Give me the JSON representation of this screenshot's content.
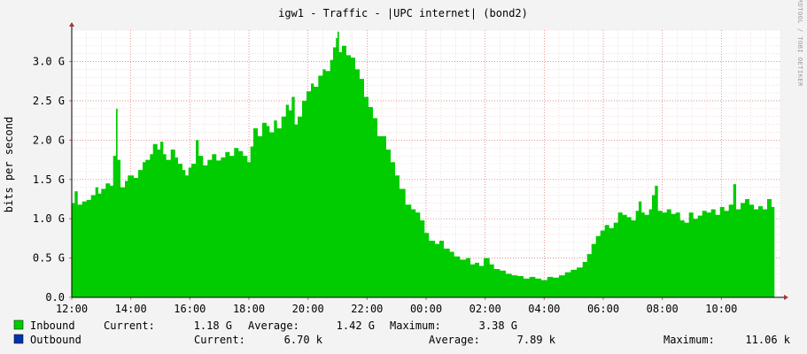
{
  "window": {
    "title": "igw1 - Traffic - |UPC internet| (bond2)",
    "watermark": "RRDTOOL / TOBI OETIKER"
  },
  "legend": {
    "inbound": {
      "name": "Inbound",
      "current_label": "Current:",
      "current": "1.18 G",
      "average_label": "Average:",
      "average": "1.42 G",
      "maximum_label": "Maximum:",
      "maximum": "3.38 G",
      "color": "#00cc00"
    },
    "outbound": {
      "name": "Outbound",
      "current_label": "Current:",
      "current": "6.70 k",
      "average_label": "Average:",
      "average": "7.89 k",
      "maximum_label": "Maximum:",
      "maximum": "11.06 k",
      "color": "#0033aa"
    }
  },
  "chart_data": {
    "type": "area",
    "title": "igw1 - Traffic - |UPC internet| (bond2)",
    "ylabel": "bits per second",
    "xlabel": "",
    "x_ticks": [
      "12:00",
      "14:00",
      "16:00",
      "18:00",
      "20:00",
      "22:00",
      "00:00",
      "02:00",
      "04:00",
      "06:00",
      "08:00",
      "10:00"
    ],
    "y_ticks": [
      "0.0",
      "0.5 G",
      "1.0 G",
      "1.5 G",
      "2.0 G",
      "2.5 G",
      "3.0 G"
    ],
    "y_tick_values": [
      0,
      0.5,
      1.0,
      1.5,
      2.0,
      2.5,
      3.0
    ],
    "ylim": [
      0,
      3.4
    ],
    "x_range_hours": [
      12,
      36
    ],
    "grid": true,
    "series": [
      {
        "name": "Inbound",
        "color": "#00cc00",
        "unit": "G",
        "points": [
          [
            12.0,
            1.2
          ],
          [
            12.1,
            1.35
          ],
          [
            12.2,
            1.18
          ],
          [
            12.35,
            1.22
          ],
          [
            12.5,
            1.24
          ],
          [
            12.65,
            1.3
          ],
          [
            12.8,
            1.4
          ],
          [
            12.9,
            1.32
          ],
          [
            13.0,
            1.38
          ],
          [
            13.15,
            1.45
          ],
          [
            13.3,
            1.42
          ],
          [
            13.4,
            1.8
          ],
          [
            13.5,
            2.4
          ],
          [
            13.55,
            1.75
          ],
          [
            13.65,
            1.4
          ],
          [
            13.8,
            1.48
          ],
          [
            13.9,
            1.55
          ],
          [
            14.1,
            1.52
          ],
          [
            14.25,
            1.62
          ],
          [
            14.4,
            1.72
          ],
          [
            14.5,
            1.75
          ],
          [
            14.65,
            1.82
          ],
          [
            14.75,
            1.95
          ],
          [
            14.9,
            1.88
          ],
          [
            15.0,
            1.98
          ],
          [
            15.1,
            1.82
          ],
          [
            15.2,
            1.75
          ],
          [
            15.35,
            1.88
          ],
          [
            15.5,
            1.78
          ],
          [
            15.6,
            1.7
          ],
          [
            15.75,
            1.62
          ],
          [
            15.85,
            1.55
          ],
          [
            15.95,
            1.65
          ],
          [
            16.05,
            1.7
          ],
          [
            16.2,
            2.0
          ],
          [
            16.3,
            1.8
          ],
          [
            16.45,
            1.68
          ],
          [
            16.6,
            1.75
          ],
          [
            16.75,
            1.82
          ],
          [
            16.9,
            1.74
          ],
          [
            17.05,
            1.78
          ],
          [
            17.2,
            1.85
          ],
          [
            17.35,
            1.8
          ],
          [
            17.5,
            1.9
          ],
          [
            17.65,
            1.86
          ],
          [
            17.8,
            1.8
          ],
          [
            17.95,
            1.72
          ],
          [
            18.05,
            1.92
          ],
          [
            18.15,
            2.15
          ],
          [
            18.3,
            2.05
          ],
          [
            18.45,
            2.22
          ],
          [
            18.6,
            2.18
          ],
          [
            18.7,
            2.1
          ],
          [
            18.85,
            2.25
          ],
          [
            18.95,
            2.15
          ],
          [
            19.1,
            2.3
          ],
          [
            19.25,
            2.45
          ],
          [
            19.35,
            2.38
          ],
          [
            19.45,
            2.55
          ],
          [
            19.55,
            2.2
          ],
          [
            19.65,
            2.3
          ],
          [
            19.8,
            2.5
          ],
          [
            19.95,
            2.62
          ],
          [
            20.1,
            2.72
          ],
          [
            20.2,
            2.68
          ],
          [
            20.35,
            2.82
          ],
          [
            20.5,
            2.9
          ],
          [
            20.6,
            2.88
          ],
          [
            20.75,
            3.02
          ],
          [
            20.85,
            3.18
          ],
          [
            20.95,
            3.3
          ],
          [
            21.0,
            3.38
          ],
          [
            21.05,
            3.12
          ],
          [
            21.15,
            3.2
          ],
          [
            21.3,
            3.08
          ],
          [
            21.45,
            3.05
          ],
          [
            21.6,
            2.9
          ],
          [
            21.75,
            2.78
          ],
          [
            21.9,
            2.55
          ],
          [
            22.05,
            2.42
          ],
          [
            22.2,
            2.28
          ],
          [
            22.35,
            2.05
          ],
          [
            22.5,
            2.05
          ],
          [
            22.65,
            1.88
          ],
          [
            22.8,
            1.72
          ],
          [
            22.95,
            1.55
          ],
          [
            23.1,
            1.38
          ],
          [
            23.3,
            1.18
          ],
          [
            23.5,
            1.12
          ],
          [
            23.65,
            1.08
          ],
          [
            23.8,
            0.98
          ],
          [
            23.95,
            0.82
          ],
          [
            24.1,
            0.72
          ],
          [
            24.3,
            0.68
          ],
          [
            24.45,
            0.72
          ],
          [
            24.6,
            0.62
          ],
          [
            24.8,
            0.58
          ],
          [
            24.95,
            0.52
          ],
          [
            25.15,
            0.48
          ],
          [
            25.35,
            0.5
          ],
          [
            25.5,
            0.42
          ],
          [
            25.65,
            0.44
          ],
          [
            25.8,
            0.4
          ],
          [
            25.95,
            0.5
          ],
          [
            26.15,
            0.42
          ],
          [
            26.3,
            0.36
          ],
          [
            26.5,
            0.34
          ],
          [
            26.7,
            0.3
          ],
          [
            26.9,
            0.28
          ],
          [
            27.1,
            0.27
          ],
          [
            27.3,
            0.24
          ],
          [
            27.5,
            0.26
          ],
          [
            27.7,
            0.24
          ],
          [
            27.9,
            0.22
          ],
          [
            28.1,
            0.26
          ],
          [
            28.3,
            0.25
          ],
          [
            28.5,
            0.28
          ],
          [
            28.7,
            0.32
          ],
          [
            28.9,
            0.35
          ],
          [
            29.1,
            0.38
          ],
          [
            29.3,
            0.45
          ],
          [
            29.45,
            0.55
          ],
          [
            29.6,
            0.68
          ],
          [
            29.75,
            0.78
          ],
          [
            29.9,
            0.85
          ],
          [
            30.05,
            0.92
          ],
          [
            30.2,
            0.88
          ],
          [
            30.35,
            0.95
          ],
          [
            30.5,
            1.08
          ],
          [
            30.65,
            1.05
          ],
          [
            30.8,
            1.02
          ],
          [
            30.95,
            0.98
          ],
          [
            31.1,
            1.1
          ],
          [
            31.2,
            1.22
          ],
          [
            31.3,
            1.08
          ],
          [
            31.4,
            1.05
          ],
          [
            31.55,
            1.12
          ],
          [
            31.65,
            1.3
          ],
          [
            31.75,
            1.42
          ],
          [
            31.85,
            1.1
          ],
          [
            32.0,
            1.08
          ],
          [
            32.15,
            1.12
          ],
          [
            32.3,
            1.06
          ],
          [
            32.45,
            1.08
          ],
          [
            32.6,
            0.98
          ],
          [
            32.75,
            0.95
          ],
          [
            32.9,
            1.08
          ],
          [
            33.05,
            1.0
          ],
          [
            33.2,
            1.04
          ],
          [
            33.35,
            1.1
          ],
          [
            33.5,
            1.08
          ],
          [
            33.65,
            1.12
          ],
          [
            33.8,
            1.05
          ],
          [
            33.95,
            1.15
          ],
          [
            34.1,
            1.1
          ],
          [
            34.25,
            1.18
          ],
          [
            34.4,
            1.44
          ],
          [
            34.5,
            1.12
          ],
          [
            34.65,
            1.2
          ],
          [
            34.8,
            1.25
          ],
          [
            34.95,
            1.18
          ],
          [
            35.1,
            1.12
          ],
          [
            35.25,
            1.16
          ],
          [
            35.4,
            1.12
          ],
          [
            35.55,
            1.25
          ],
          [
            35.7,
            1.15
          ],
          [
            35.8,
            1.18
          ]
        ]
      },
      {
        "name": "Outbound",
        "color": "#0033aa",
        "unit": "k",
        "points": []
      }
    ]
  }
}
